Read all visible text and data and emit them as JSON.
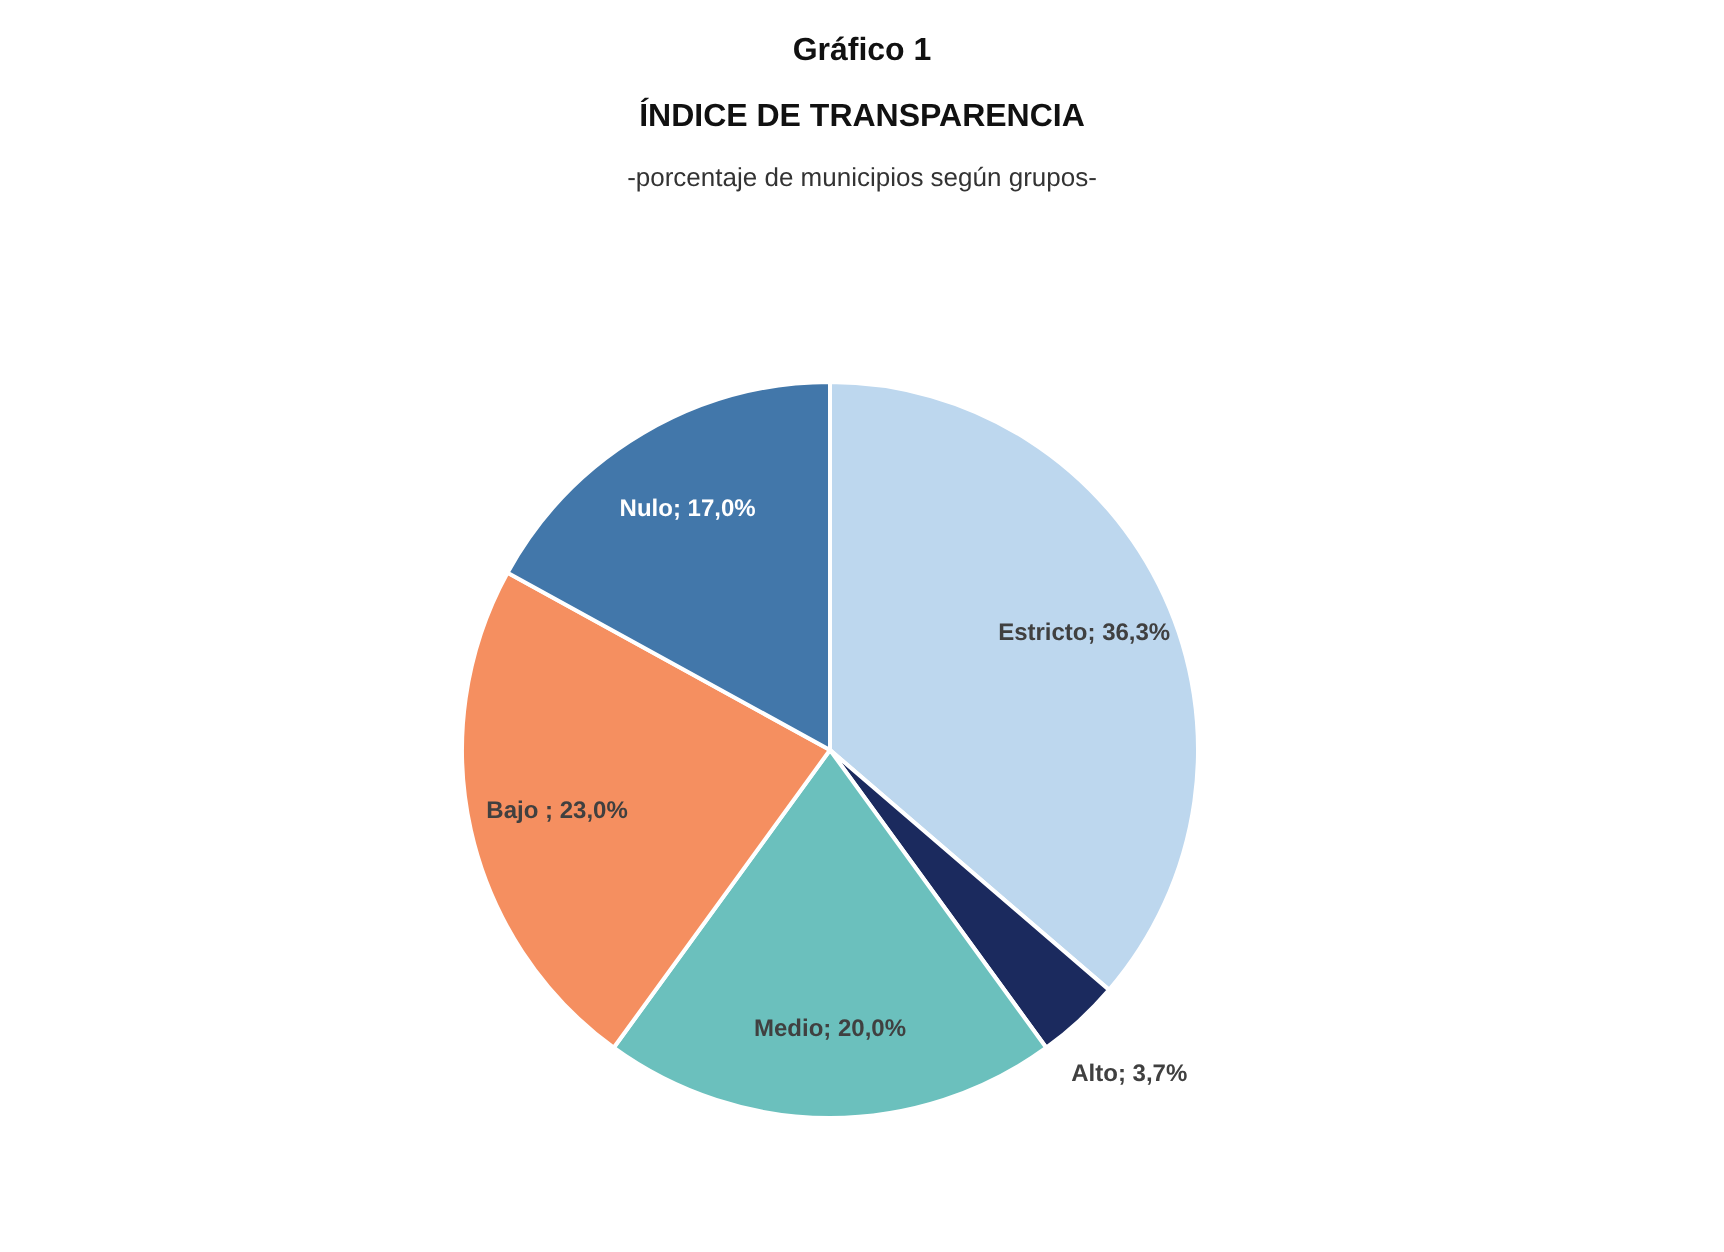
{
  "chart_data": {
    "type": "pie",
    "title": "Gráfico 1\nÍNDICE DE TRANSPARENCIA",
    "subtitle": "-porcentaje de municipios según grupos-",
    "categories": [
      "Estricto",
      "Alto",
      "Medio",
      "Bajo ",
      "Nulo"
    ],
    "values": [
      36.3,
      3.7,
      20.0,
      23.0,
      17.0
    ],
    "colors": [
      "#bdd7ee",
      "#1b2a5e",
      "#6bc0bd",
      "#f58f60",
      "#4277aa"
    ],
    "value_labels": [
      "; 36,3%",
      "; 3,7%",
      "; 20,0%",
      "; 23,0%",
      "; 17,0%"
    ]
  }
}
